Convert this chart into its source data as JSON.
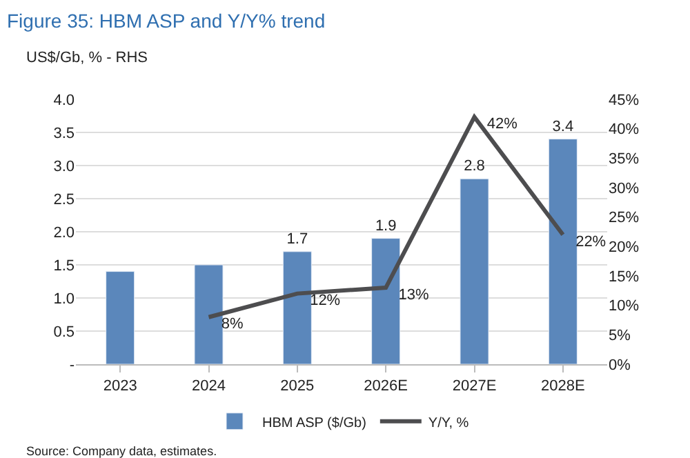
{
  "chart_data": {
    "type": "bar",
    "title": "Figure 35: HBM ASP and Y/Y% trend",
    "subtitle": "US$/Gb, % - RHS",
    "categories": [
      "2023",
      "2024",
      "2025",
      "2026E",
      "2027E",
      "2028E"
    ],
    "series": [
      {
        "name": "HBM ASP ($/Gb)",
        "color": "#5b87bb",
        "values": [
          1.4,
          1.5,
          1.7,
          1.9,
          2.8,
          3.4
        ],
        "value_labels": [
          null,
          null,
          "1.7",
          "1.9",
          "2.8",
          "3.4"
        ]
      },
      {
        "name": "Y/Y, %",
        "type": "line",
        "axis": "y2",
        "color": "#4d4d4f",
        "marker": "none",
        "values": [
          null,
          8,
          12,
          13,
          42,
          22
        ],
        "value_labels": [
          null,
          "8%",
          "12%",
          "13%",
          "42%",
          "22%"
        ]
      }
    ],
    "ylim": [
      0,
      4.0
    ],
    "yticks": [
      {
        "value": 0,
        "label": "-"
      },
      0.5,
      {
        "value": 1,
        "label": "1.0"
      },
      1.5,
      {
        "value": 2,
        "label": "2.0"
      },
      2.5,
      {
        "value": 3,
        "label": "3.0"
      },
      3.5,
      {
        "value": 4,
        "label": "4.0"
      }
    ],
    "y2lim": [
      0,
      45
    ],
    "y2ticks": [
      {
        "value": 0,
        "label": "0%"
      },
      {
        "value": 5,
        "label": "5%"
      },
      {
        "value": 10,
        "label": "10%"
      },
      {
        "value": 15,
        "label": "15%"
      },
      {
        "value": 20,
        "label": "20%"
      },
      {
        "value": 25,
        "label": "25%"
      },
      {
        "value": 30,
        "label": "30%"
      },
      {
        "value": 35,
        "label": "35%"
      },
      {
        "value": 40,
        "label": "40%"
      },
      {
        "value": 45,
        "label": "45%"
      }
    ],
    "grid": "y",
    "legend": "bottom",
    "annotations": [
      "Source: Company data, estimates."
    ]
  }
}
